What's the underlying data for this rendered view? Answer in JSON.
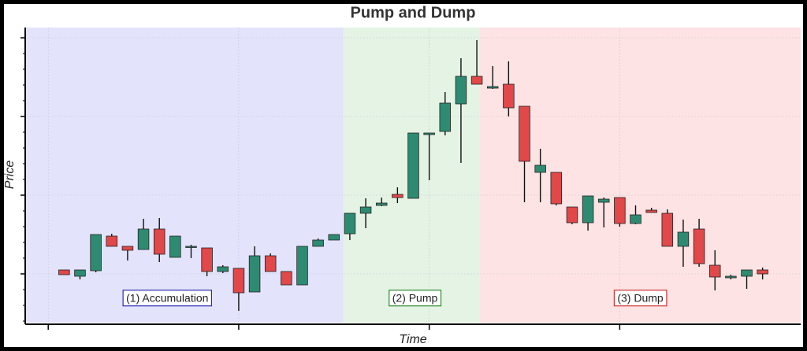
{
  "chart_data": {
    "type": "candlestick",
    "title": "Pump and Dump",
    "x_label": "Time",
    "y_label": "Price",
    "x": [
      0,
      1,
      2,
      3,
      4,
      5,
      6,
      7,
      8,
      9,
      10,
      11,
      12,
      13,
      14,
      15,
      16,
      17,
      18,
      19,
      20,
      21,
      22,
      23,
      24,
      25,
      26,
      27,
      28,
      29,
      30,
      31,
      32,
      33,
      34,
      35,
      36,
      37,
      38,
      39,
      40,
      41,
      42,
      43,
      44
    ],
    "open": [
      26.25,
      24.25,
      26,
      37,
      33.75,
      32.75,
      39.25,
      30.25,
      33.75,
      33.25,
      25.75,
      26.75,
      19.25,
      30.75,
      25.75,
      21.5,
      33.75,
      35.75,
      37.75,
      44.25,
      46.75,
      50.25,
      49,
      69.25,
      70.25,
      79,
      87.75,
      84,
      85.25,
      78.25,
      57.25,
      57.25,
      46.25,
      41.25,
      47.75,
      49.25,
      41,
      45.25,
      44.25,
      33.75,
      39.25,
      27.75,
      23.75,
      24.25,
      26.25
    ],
    "high": [
      26.25,
      26.25,
      37.5,
      37.75,
      33.75,
      42.5,
      42.75,
      37,
      34.25,
      33.25,
      27.75,
      26.75,
      33.75,
      31.5,
      25.75,
      33.75,
      36.25,
      37.5,
      44.25,
      49,
      49.25,
      52.5,
      69.75,
      69.75,
      82.75,
      93.5,
      99.25,
      91,
      92.5,
      78.25,
      64.75,
      57.25,
      46.25,
      49.75,
      49.25,
      49.25,
      46.75,
      46,
      45.5,
      42.25,
      42.5,
      32.5,
      24.75,
      26.25,
      27
    ],
    "low": [
      24.75,
      23.25,
      25.5,
      33.75,
      29.25,
      32.75,
      28.75,
      30.25,
      30,
      24.25,
      25.25,
      13.25,
      19.25,
      25.75,
      21.5,
      21.5,
      33.75,
      35.75,
      35.75,
      39.5,
      46.5,
      47.5,
      49,
      54.75,
      69,
      60.25,
      85.25,
      83.75,
      75,
      47.75,
      47.75,
      46.75,
      40.75,
      38.75,
      39.75,
      40,
      40.75,
      44.5,
      33.75,
      27.25,
      27.25,
      19.75,
      23.25,
      20.25,
      23.25
    ],
    "close": [
      24.75,
      26.25,
      37.5,
      33.75,
      32.5,
      39.25,
      31.25,
      37,
      33.75,
      25.75,
      27.25,
      19,
      30.75,
      25.75,
      21.5,
      33.75,
      35.75,
      37.5,
      44.25,
      46.25,
      47.5,
      49.25,
      69.75,
      69.75,
      79.25,
      87.75,
      85.25,
      84.5,
      77.75,
      60.75,
      59.5,
      47.25,
      41.25,
      49.75,
      48.75,
      41,
      43.75,
      44.5,
      33.75,
      38.25,
      28.25,
      24,
      24.25,
      26.25,
      25
    ],
    "up_color": "#2e8b72",
    "down_color": "#e0484a",
    "xlim": [
      -2.4,
      46.4
    ],
    "ylim": [
      9.5,
      103.25
    ],
    "xticks": [
      -1,
      11,
      23,
      35
    ],
    "yticks": [
      25,
      50,
      75,
      100
    ],
    "yminor_ticks": [
      10,
      15,
      20,
      30,
      35,
      40,
      45,
      55,
      60,
      65,
      70,
      80,
      85,
      90,
      95
    ],
    "grid": true,
    "regions": [
      {
        "label": "(1) Accumulation",
        "from": -2.4,
        "to": 17.6,
        "fill": "#e3e3fb",
        "edge": "#2b2bb0",
        "label_x": 6.5,
        "label_y": 17
      },
      {
        "label": "(2) Pump",
        "from": 17.6,
        "to": 26.2,
        "fill": "#e4f3e4",
        "edge": "#2e8b2e",
        "label_x": 22.1,
        "label_y": 17
      },
      {
        "label": "(3) Dump",
        "from": 26.2,
        "to": 46.4,
        "fill": "#fde3e3",
        "edge": "#d03030",
        "label_x": 36.3,
        "label_y": 17
      }
    ]
  }
}
